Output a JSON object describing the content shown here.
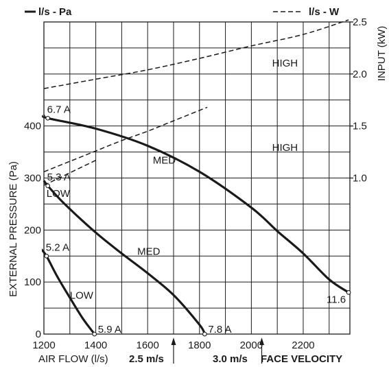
{
  "chart_data": {
    "type": "line",
    "legend": {
      "pa_label": "l/s - Pa",
      "w_label": "l/s - W",
      "position": "top"
    },
    "xlabel": "AIR FLOW (l/s)",
    "ylabel": "EXTERNAL PRESSURE (Pa)",
    "y2label": "INPUT (kW)",
    "xlim": [
      1200,
      2380
    ],
    "ylim": [
      0,
      600
    ],
    "y2lim": [
      -0.5,
      2.5
    ],
    "x_ticks": [
      "1200",
      "1400",
      "1600",
      "1800",
      "2000",
      "2200"
    ],
    "y_ticks": [
      "0",
      "100",
      "200",
      "300",
      "400"
    ],
    "y2_ticks": [
      "1.0",
      "1.5",
      "2.0",
      "2.5"
    ],
    "grid": true,
    "face_velocity": {
      "label": "FACE VELOCITY",
      "markers": [
        {
          "label": "2.5 m/s",
          "x": 1700
        },
        {
          "label": "3.0 m/s",
          "x": 2040
        }
      ]
    },
    "pressure_series": [
      {
        "name": "LOW",
        "x": [
          1190,
          1210,
          1250,
          1300,
          1350,
          1395
        ],
        "y": [
          163,
          150,
          112,
          70,
          30,
          0
        ],
        "start_label": "5.2 A",
        "end_label": "5.9 A",
        "start_point": {
          "x": 1210,
          "y": 150
        },
        "end_point": {
          "x": 1395,
          "y": 0
        }
      },
      {
        "name": "MED",
        "x": [
          1200,
          1215,
          1280,
          1400,
          1500,
          1600,
          1700,
          1800,
          1820
        ],
        "y": [
          295,
          285,
          250,
          195,
          155,
          117,
          75,
          18,
          0
        ],
        "start_label": "5.3 A",
        "end_label": "7.8 A",
        "start_point": {
          "x": 1215,
          "y": 285
        },
        "end_point": {
          "x": 1820,
          "y": 0
        }
      },
      {
        "name": "HIGH",
        "x": [
          1200,
          1215,
          1400,
          1600,
          1800,
          2000,
          2100,
          2200,
          2300,
          2375
        ],
        "y": [
          420,
          415,
          395,
          362,
          312,
          243,
          198,
          155,
          105,
          80
        ],
        "start_label": "6.7 A",
        "end_label": "11.6",
        "start_point": {
          "x": 1215,
          "y": 415
        },
        "end_point": {
          "x": 2375,
          "y": 80
        }
      }
    ],
    "input_series": [
      {
        "name": "LOW",
        "x": [
          1200,
          1300,
          1400
        ],
        "y": [
          0.93,
          1.05,
          1.17
        ]
      },
      {
        "name": "MED",
        "x": [
          1200,
          1300,
          1400,
          1500,
          1600,
          1700,
          1800,
          1830
        ],
        "y": [
          1.06,
          1.16,
          1.26,
          1.36,
          1.45,
          1.55,
          1.65,
          1.68
        ]
      },
      {
        "name": "HIGH",
        "x": [
          1200,
          1400,
          1600,
          1800,
          2000,
          2200,
          2375
        ],
        "y": [
          1.86,
          1.95,
          2.04,
          2.15,
          2.27,
          2.38,
          2.52
        ]
      }
    ],
    "curve_labels": [
      {
        "text": "HIGH",
        "x": 2080,
        "y": 2.07
      },
      {
        "text": "MED",
        "x": 1620,
        "y": 1.14
      },
      {
        "text": "LOW",
        "x": 1210,
        "y": 0.82
      },
      {
        "text": "HIGH",
        "x": 2080,
        "y": 1.26
      },
      {
        "text": "MED",
        "x": 1560,
        "y": 0.26
      },
      {
        "text": "LOW",
        "x": 1300,
        "y": -0.16
      }
    ]
  }
}
